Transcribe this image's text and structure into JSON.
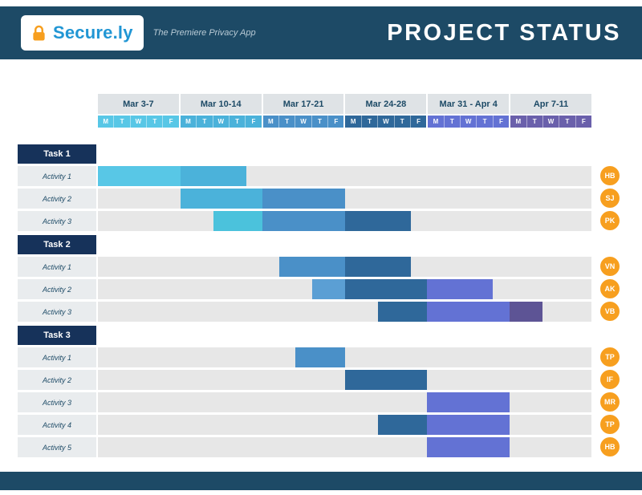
{
  "header": {
    "brand": "Secure.ly",
    "tagline": "The Premiere Privacy App",
    "title": "PROJECT STATUS"
  },
  "colors": {
    "header_bg": "#1d4a66",
    "task_header_bg": "#16325a",
    "week_label_bg": "#dfe3e6",
    "track_bg": "#e7e7e7",
    "activity_label_bg": "#e9ecee",
    "badge_orange": "#f79f1f",
    "brand_blue": "#2196d4",
    "navy_text": "#1d4a66"
  },
  "chart_data": {
    "type": "bar",
    "variant": "gantt",
    "title": "PROJECT STATUS",
    "x_axis": "Weeks Mar 3 through Apr 11, weekdays M-F",
    "days": [
      "M",
      "T",
      "W",
      "T",
      "F"
    ],
    "days_per_week": 5,
    "total_days": 30,
    "weeks": [
      {
        "label": "Mar 3-7",
        "color": "#58c7e6"
      },
      {
        "label": "Mar 10-14",
        "color": "#4bb2da"
      },
      {
        "label": "Mar 17-21",
        "color": "#4a90c8"
      },
      {
        "label": "Mar 24-28",
        "color": "#2f689a"
      },
      {
        "label": "Mar 31 - Apr 4",
        "color": "#6372d4"
      },
      {
        "label": "Apr 7-11",
        "color": "#6a60ab"
      }
    ],
    "tasks": [
      {
        "name": "Task 1",
        "activities": [
          {
            "name": "Activity 1",
            "badge": "HB",
            "segments": [
              {
                "start": 0,
                "len": 5,
                "color": "#58c7e6"
              },
              {
                "start": 5,
                "len": 4,
                "color": "#4bb2da"
              }
            ]
          },
          {
            "name": "Activity 2",
            "badge": "SJ",
            "segments": [
              {
                "start": 5,
                "len": 5,
                "color": "#4bb2da"
              },
              {
                "start": 10,
                "len": 5,
                "color": "#4a90c8"
              }
            ]
          },
          {
            "name": "Activity 3",
            "badge": "PK",
            "segments": [
              {
                "start": 7,
                "len": 3,
                "color": "#4bc2dc"
              },
              {
                "start": 10,
                "len": 5,
                "color": "#4a90c8"
              },
              {
                "start": 15,
                "len": 4,
                "color": "#2f689a"
              }
            ]
          }
        ]
      },
      {
        "name": "Task 2",
        "activities": [
          {
            "name": "Activity 1",
            "badge": "VN",
            "segments": [
              {
                "start": 11,
                "len": 4,
                "color": "#4a90c8"
              },
              {
                "start": 15,
                "len": 4,
                "color": "#2f689a"
              }
            ]
          },
          {
            "name": "Activity 2",
            "badge": "AK",
            "segments": [
              {
                "start": 13,
                "len": 2,
                "color": "#5b9fd4"
              },
              {
                "start": 15,
                "len": 5,
                "color": "#2f689a"
              },
              {
                "start": 20,
                "len": 4,
                "color": "#6372d4"
              }
            ]
          },
          {
            "name": "Activity 3",
            "badge": "VB",
            "segments": [
              {
                "start": 17,
                "len": 3,
                "color": "#2f689a"
              },
              {
                "start": 20,
                "len": 5,
                "color": "#6372d4"
              },
              {
                "start": 25,
                "len": 2,
                "color": "#5d5495"
              }
            ]
          }
        ]
      },
      {
        "name": "Task 3",
        "activities": [
          {
            "name": "Activity 1",
            "badge": "TP",
            "segments": [
              {
                "start": 12,
                "len": 3,
                "color": "#4a90c8"
              }
            ]
          },
          {
            "name": "Activity 2",
            "badge": "IF",
            "segments": [
              {
                "start": 15,
                "len": 5,
                "color": "#2f689a"
              }
            ]
          },
          {
            "name": "Activity 3",
            "badge": "MR",
            "segments": [
              {
                "start": 20,
                "len": 5,
                "color": "#6372d4"
              }
            ]
          },
          {
            "name": "Activity 4",
            "badge": "TP",
            "segments": [
              {
                "start": 17,
                "len": 3,
                "color": "#2f689a"
              },
              {
                "start": 20,
                "len": 5,
                "color": "#6372d4"
              }
            ]
          },
          {
            "name": "Activity 5",
            "badge": "HB",
            "segments": [
              {
                "start": 20,
                "len": 5,
                "color": "#6372d4"
              }
            ]
          }
        ]
      }
    ]
  }
}
